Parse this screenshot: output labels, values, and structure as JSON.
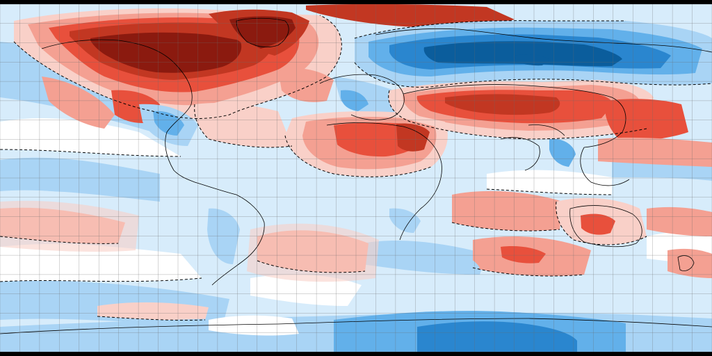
{
  "map": {
    "projection": "equirectangular",
    "grid": true,
    "grid_step_degrees": 10,
    "contour_style": "dashed black zero-anomaly line",
    "colors": {
      "strong_warm": "#8b1a0f",
      "warm": "#c23722",
      "moderate_warm": "#e8503c",
      "mild_warm": "#f4a092",
      "slight_warm": "#f9d0c8",
      "neutral": "#ffffff",
      "slight_cool": "#d7ecfb",
      "mild_cool": "#a9d4f5",
      "moderate_cool": "#62b0ea",
      "cool": "#2a86cf",
      "strong_cool": "#0b5d9c",
      "coastline": "#000000",
      "grid": "#6b6b6b"
    },
    "regions": [
      {
        "name": "north-america-arctic-warm",
        "level": "strong_warm"
      },
      {
        "name": "greenland-warm",
        "level": "warm"
      },
      {
        "name": "northern-eurasia-cold",
        "level": "strong_cool"
      },
      {
        "name": "central-asia-warm",
        "level": "moderate_warm"
      },
      {
        "name": "north-africa-warm",
        "level": "moderate_warm"
      },
      {
        "name": "australia-warm",
        "level": "moderate_warm"
      },
      {
        "name": "antarctica-cool",
        "level": "moderate_cool"
      }
    ]
  }
}
